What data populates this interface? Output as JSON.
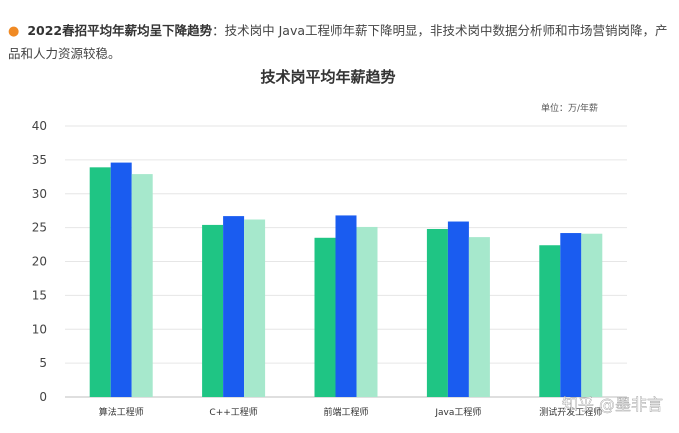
{
  "header": {
    "bold_text": "2022春招平均年薪均呈下降趋势",
    "body_text": "：技术岗中 Java工程师年薪下降明显，非技术岗中数据分析师和市场营销岗降，产品和人力资源较稳。"
  },
  "watermark": "知乎 @墨非言",
  "chart_data": {
    "type": "bar",
    "title": "技术岗平均年薪趋势",
    "unit": "单位：万/年薪",
    "xlabel": "",
    "ylabel": "",
    "ylim": [
      0,
      40
    ],
    "yticks": [
      "0",
      "5",
      "10",
      "15",
      "20",
      "25",
      "30",
      "35",
      "40"
    ],
    "grid": true,
    "legend": "none",
    "categories": [
      "算法工程师",
      "C++工程师",
      "前端工程师",
      "Java工程师",
      "测试开发工程师"
    ],
    "series": [
      {
        "color": "#1fc584",
        "values": [
          33.9,
          25.4,
          23.5,
          24.8,
          22.4
        ]
      },
      {
        "color": "#1a5cf0",
        "values": [
          34.6,
          26.7,
          26.8,
          25.9,
          24.2
        ]
      },
      {
        "color": "#a6e8cc",
        "values": [
          32.9,
          26.2,
          25.1,
          23.6,
          24.1
        ]
      }
    ]
  }
}
